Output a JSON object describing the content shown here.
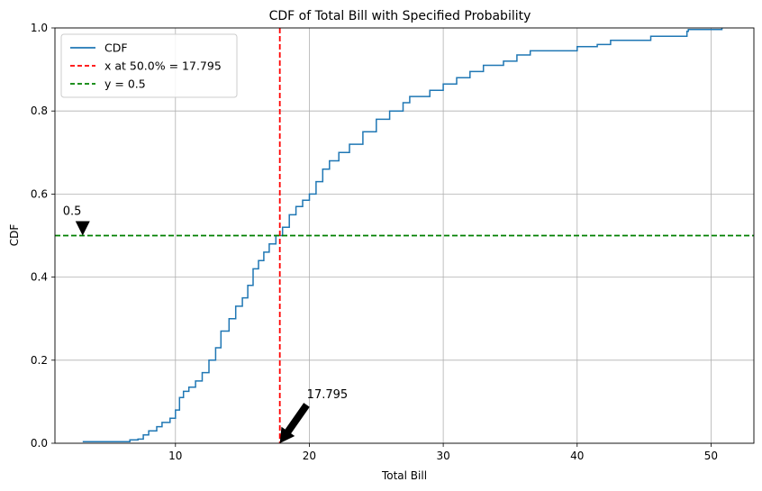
{
  "chart_data": {
    "type": "line",
    "title": "CDF of Total Bill with Specified Probability",
    "xlabel": "Total Bill",
    "ylabel": "CDF",
    "xlim": [
      1.0,
      53.2
    ],
    "ylim": [
      0,
      1.0
    ],
    "x_ticks": [
      10,
      20,
      30,
      40,
      50
    ],
    "y_ticks": [
      0.0,
      0.2,
      0.4,
      0.6,
      0.8,
      1.0
    ],
    "x_tick_labels": [
      "10",
      "20",
      "30",
      "40",
      "50"
    ],
    "y_tick_labels": [
      "0.0",
      "0.2",
      "0.4",
      "0.6",
      "0.8",
      "1.0"
    ],
    "grid": true,
    "legend_position": "top-left",
    "series": [
      {
        "name": "CDF",
        "style": "step",
        "color": "#1f77b4",
        "points": [
          [
            3.07,
            0.004
          ],
          [
            5.0,
            0.004
          ],
          [
            6.6,
            0.008
          ],
          [
            7.2,
            0.01
          ],
          [
            7.6,
            0.02
          ],
          [
            8.0,
            0.03
          ],
          [
            8.6,
            0.04
          ],
          [
            9.0,
            0.05
          ],
          [
            9.6,
            0.06
          ],
          [
            10.0,
            0.08
          ],
          [
            10.3,
            0.11
          ],
          [
            10.6,
            0.125
          ],
          [
            11.0,
            0.135
          ],
          [
            11.5,
            0.15
          ],
          [
            12.0,
            0.17
          ],
          [
            12.5,
            0.2
          ],
          [
            13.0,
            0.23
          ],
          [
            13.4,
            0.27
          ],
          [
            14.0,
            0.3
          ],
          [
            14.5,
            0.33
          ],
          [
            15.0,
            0.35
          ],
          [
            15.4,
            0.38
          ],
          [
            15.8,
            0.42
          ],
          [
            16.2,
            0.44
          ],
          [
            16.6,
            0.46
          ],
          [
            17.0,
            0.48
          ],
          [
            17.5,
            0.5
          ],
          [
            18.0,
            0.52
          ],
          [
            18.5,
            0.55
          ],
          [
            19.0,
            0.57
          ],
          [
            19.5,
            0.585
          ],
          [
            20.0,
            0.6
          ],
          [
            20.5,
            0.63
          ],
          [
            21.0,
            0.66
          ],
          [
            21.5,
            0.68
          ],
          [
            22.2,
            0.7
          ],
          [
            23.0,
            0.72
          ],
          [
            24.0,
            0.75
          ],
          [
            25.0,
            0.78
          ],
          [
            26.0,
            0.8
          ],
          [
            27.0,
            0.82
          ],
          [
            27.5,
            0.835
          ],
          [
            29.0,
            0.85
          ],
          [
            30.0,
            0.865
          ],
          [
            31.0,
            0.88
          ],
          [
            32.0,
            0.895
          ],
          [
            33.0,
            0.91
          ],
          [
            34.5,
            0.92
          ],
          [
            35.5,
            0.935
          ],
          [
            36.5,
            0.945
          ],
          [
            40.0,
            0.955
          ],
          [
            41.5,
            0.96
          ],
          [
            42.5,
            0.97
          ],
          [
            45.5,
            0.98
          ],
          [
            48.2,
            0.992
          ],
          [
            48.3,
            0.996
          ],
          [
            50.81,
            1.0
          ]
        ]
      },
      {
        "name": "x at 50.0% = 17.795",
        "orientation": "vertical",
        "value": 17.795,
        "color": "#ff0000",
        "dash": "dashed"
      },
      {
        "name": "y = 0.5",
        "orientation": "horizontal",
        "value": 0.5,
        "color": "#008000",
        "dash": "dashed"
      }
    ],
    "annotations": [
      {
        "text": "0.5",
        "point": [
          3.07,
          0.5
        ],
        "arrow": "down"
      },
      {
        "text": "17.795",
        "point": [
          17.795,
          0.0
        ],
        "arrow": "down-left"
      }
    ]
  }
}
